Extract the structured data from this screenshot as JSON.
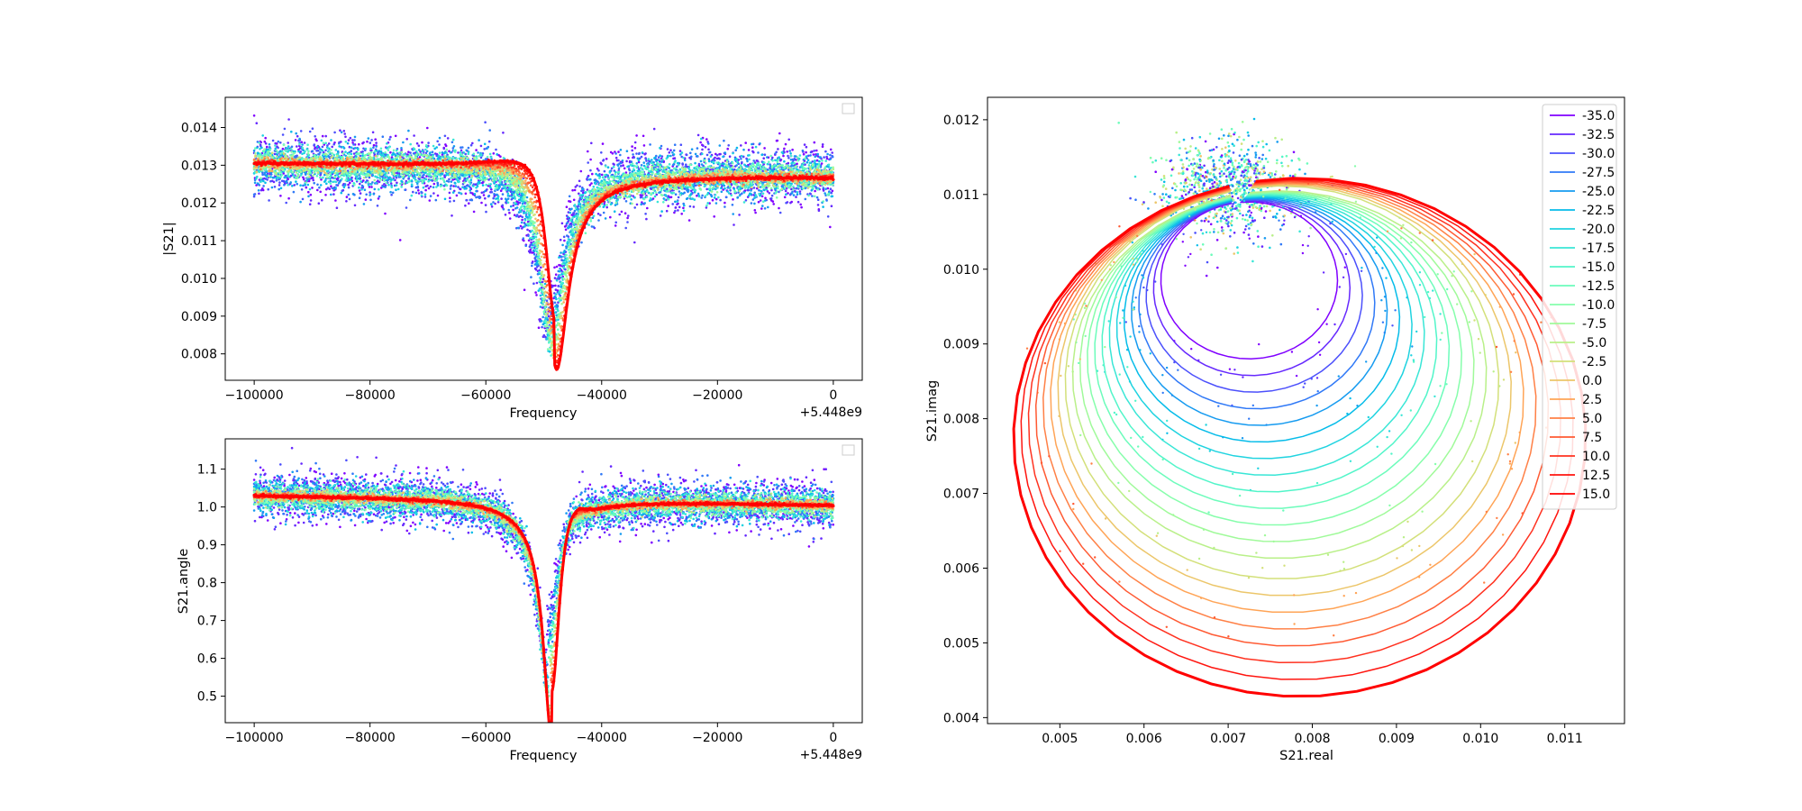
{
  "figure": {
    "background": "#ffffff"
  },
  "series_levels": [
    "-35.0",
    "-32.5",
    "-30.0",
    "-27.5",
    "-25.0",
    "-22.5",
    "-20.0",
    "-17.5",
    "-15.0",
    "-12.5",
    "-10.0",
    "-7.5",
    "-5.0",
    "-2.5",
    "0.0",
    "2.5",
    "5.0",
    "7.5",
    "10.0",
    "12.5",
    "15.0"
  ],
  "colors": [
    "#8000ff",
    "#6629fe",
    "#4c50fc",
    "#3079f7",
    "#169bf0",
    "#06bce9",
    "#1fd3e0",
    "#39e6d6",
    "#52f5c9",
    "#6cfcbb",
    "#86feab",
    "#a0fa9a",
    "#b9f089",
    "#d3e07a",
    "#ecc66a",
    "#ffa456",
    "#ff8046",
    "#ff5a33",
    "#ff3220",
    "#ff150f",
    "#ff0000"
  ],
  "chart_data": [
    {
      "id": "magnitude",
      "type": "scatter",
      "xlabel": "Frequency",
      "ylabel": "|S21|",
      "x_offset_label": "+5.448e9",
      "xlim": [
        -105000,
        5000
      ],
      "ylim": [
        0.0073,
        0.0148
      ],
      "xticks": [
        -100000,
        -80000,
        -60000,
        -40000,
        -20000,
        0
      ],
      "xtick_labels": [
        "−100000",
        "−80000",
        "−60000",
        "−40000",
        "−20000",
        "0"
      ],
      "yticks": [
        0.008,
        0.009,
        0.01,
        0.011,
        0.012,
        0.013,
        0.014
      ],
      "ytick_labels": [
        "0.008",
        "0.009",
        "0.010",
        "0.011",
        "0.012",
        "0.013",
        "0.014"
      ],
      "resonance": {
        "f0": -49500,
        "baseline_start": 0.013,
        "baseline_end": 0.01275,
        "max": 0.0145,
        "min": 0.0077
      },
      "legend": "empty box, top-right"
    },
    {
      "id": "phase",
      "type": "scatter",
      "xlabel": "Frequency",
      "ylabel": "S21.angle",
      "x_offset_label": "+5.448e9",
      "xlim": [
        -105000,
        5000
      ],
      "ylim": [
        0.43,
        1.18
      ],
      "xticks": [
        -100000,
        -80000,
        -60000,
        -40000,
        -20000,
        0
      ],
      "xtick_labels": [
        "−100000",
        "−80000",
        "−60000",
        "−40000",
        "−20000",
        "0"
      ],
      "yticks": [
        0.5,
        0.6,
        0.7,
        0.8,
        0.9,
        1.0,
        1.1
      ],
      "ytick_labels": [
        "0.5",
        "0.6",
        "0.7",
        "0.8",
        "0.9",
        "1.0",
        "1.1"
      ],
      "resonance": {
        "f0": -49500,
        "baseline_start": 1.03,
        "baseline_end": 1.005,
        "min": 0.46,
        "max": 1.09
      },
      "legend": "empty box, top-right"
    },
    {
      "id": "iq",
      "type": "line",
      "xlabel": "S21.real",
      "ylabel": "S21.imag",
      "xlim": [
        0.00414,
        0.01171
      ],
      "ylim": [
        0.00392,
        0.0123
      ],
      "xticks": [
        0.005,
        0.006,
        0.007,
        0.008,
        0.009,
        0.01,
        0.011
      ],
      "xtick_labels": [
        "0.005",
        "0.006",
        "0.007",
        "0.008",
        "0.009",
        "0.010",
        "0.011"
      ],
      "yticks": [
        0.004,
        0.005,
        0.006,
        0.007,
        0.008,
        0.009,
        0.01,
        0.011,
        0.012
      ],
      "ytick_labels": [
        "0.004",
        "0.005",
        "0.006",
        "0.007",
        "0.008",
        "0.009",
        "0.010",
        "0.011",
        "0.012"
      ],
      "legend": "top-right",
      "circle_anchor": [
        0.007,
        0.0111
      ],
      "circles_note_largest": {
        "center": [
          0.00785,
          0.00775
        ],
        "radius": 0.0034
      },
      "circles_note_smallest": {
        "center": [
          0.00725,
          0.00985
        ],
        "radius": 0.00105
      }
    }
  ]
}
